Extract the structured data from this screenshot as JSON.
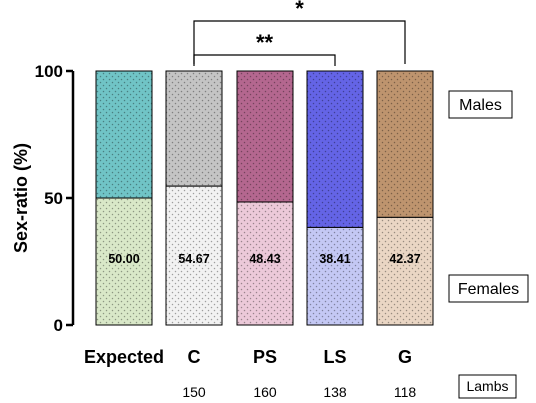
{
  "chart_data": {
    "type": "bar",
    "stacked": true,
    "ylabel": "Sex-ratio (%)",
    "ylim": [
      0,
      100
    ],
    "yticks": [
      0,
      50,
      100
    ],
    "categories": [
      "Expected",
      "C",
      "PS",
      "LS",
      "G"
    ],
    "series": [
      {
        "name": "Females",
        "values": [
          50.0,
          54.67,
          48.43,
          38.41,
          42.37
        ],
        "value_labels": [
          "50.00",
          "54.67",
          "48.43",
          "38.41",
          "42.37"
        ],
        "colors": [
          "#d9e8c8",
          "#f2f2f2",
          "#ecc9d9",
          "#c4c8f4",
          "#ead6c4"
        ]
      },
      {
        "name": "Males",
        "values": [
          50.0,
          45.33,
          51.57,
          61.59,
          57.63
        ],
        "colors": [
          "#70c4c6",
          "#c4c4c4",
          "#b4678f",
          "#6464e6",
          "#be946e"
        ]
      }
    ],
    "counts_label": "Lambs",
    "counts": [
      "",
      "150",
      "160",
      "138",
      "118"
    ],
    "significance": [
      {
        "from": "C",
        "to": "LS",
        "label": "**"
      },
      {
        "from": "C",
        "to": "G",
        "label": "*"
      }
    ]
  }
}
